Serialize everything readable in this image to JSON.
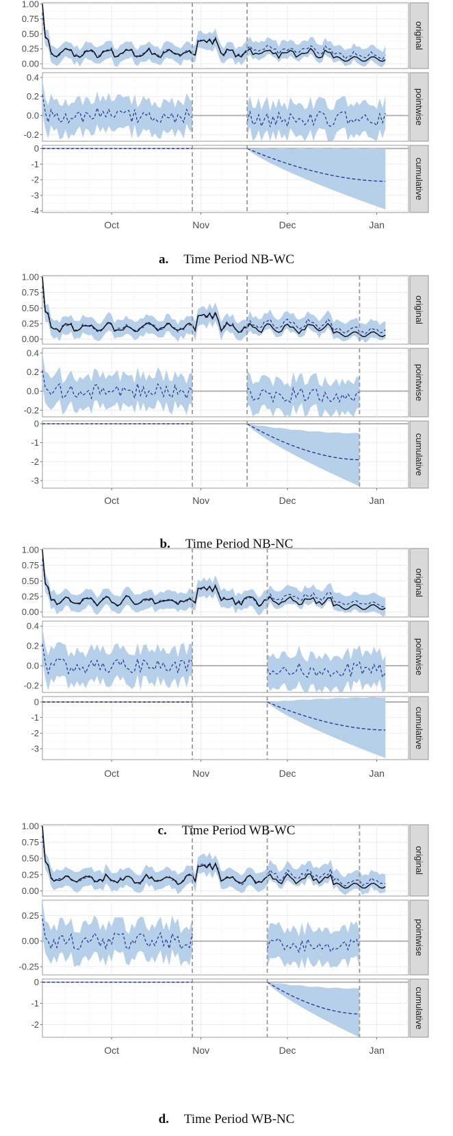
{
  "colors": {
    "band": "#b7d0ea",
    "dashed_series": "#1f2f8f",
    "actual_series": "#111111",
    "strip_bg": "#d9d9d9",
    "grid": "#ebebeb",
    "zero_line": "#aaaaaa",
    "period_marker": "#9a9a9a"
  },
  "chart_data": [
    {
      "type": "line",
      "caption_label": "a.",
      "caption_title": "Time Period NB-WC",
      "x_ticks": [
        "Oct",
        "Nov",
        "Dec",
        "Jan"
      ],
      "x_tick_days": [
        24,
        55,
        85,
        116
      ],
      "xlim_days": [
        0,
        127
      ],
      "period_markers_days": [
        52,
        71
      ],
      "panels": [
        {
          "strip": "original",
          "y_ticks": [
            "1.00",
            "0.75",
            "0.50",
            "0.25",
            "0.00"
          ],
          "y_tick_values": [
            1,
            0.75,
            0.5,
            0.25,
            0
          ],
          "ylim": [
            -0.08,
            1.02
          ]
        },
        {
          "strip": "pointwise",
          "y_ticks": [
            "0.4",
            "0.2",
            "0.0",
            "-0.2"
          ],
          "y_tick_values": [
            0.4,
            0.2,
            0,
            -0.2
          ],
          "ylim": [
            -0.27,
            0.45
          ]
        },
        {
          "strip": "cumulative",
          "y_ticks": [
            "0",
            "-1",
            "-2",
            "-3",
            "-4"
          ],
          "y_tick_values": [
            0,
            -1,
            -2,
            -3,
            -4
          ],
          "ylim": [
            -4.1,
            0.2
          ]
        }
      ],
      "cumulative_final": -2.1,
      "cumulative_band_final": [
        -3.9,
        0.0
      ]
    },
    {
      "type": "line",
      "caption_label": "b.",
      "caption_title": "Time Period NB-NC",
      "x_ticks": [
        "Oct",
        "Nov",
        "Dec",
        "Jan"
      ],
      "x_tick_days": [
        24,
        55,
        85,
        116
      ],
      "xlim_days": [
        0,
        127
      ],
      "period_markers_days": [
        52,
        71,
        110
      ],
      "panels": [
        {
          "strip": "original",
          "y_ticks": [
            "1.00",
            "0.75",
            "0.50",
            "0.25",
            "0.00"
          ],
          "y_tick_values": [
            1,
            0.75,
            0.5,
            0.25,
            0
          ],
          "ylim": [
            -0.08,
            1.02
          ]
        },
        {
          "strip": "pointwise",
          "y_ticks": [
            "0.4",
            "0.2",
            "0.0",
            "-0.2"
          ],
          "y_tick_values": [
            0.4,
            0.2,
            0,
            -0.2
          ],
          "ylim": [
            -0.27,
            0.45
          ]
        },
        {
          "strip": "cumulative",
          "y_ticks": [
            "0",
            "-1",
            "-2",
            "-3"
          ],
          "y_tick_values": [
            0,
            -1,
            -2,
            -3
          ],
          "ylim": [
            -3.4,
            0.15
          ]
        }
      ],
      "cumulative_final": -1.9,
      "cumulative_band_final": [
        -3.3,
        -0.5
      ]
    },
    {
      "type": "line",
      "caption_label": "c.",
      "caption_title": "Time Period WB-WC",
      "x_ticks": [
        "Oct",
        "Nov",
        "Dec",
        "Jan"
      ],
      "x_tick_days": [
        24,
        55,
        85,
        116
      ],
      "xlim_days": [
        0,
        127
      ],
      "period_markers_days": [
        52,
        78
      ],
      "panels": [
        {
          "strip": "original",
          "y_ticks": [
            "1.00",
            "0.75",
            "0.50",
            "0.25",
            "0.00"
          ],
          "y_tick_values": [
            1,
            0.75,
            0.5,
            0.25,
            0
          ],
          "ylim": [
            -0.08,
            1.02
          ]
        },
        {
          "strip": "pointwise",
          "y_ticks": [
            "0.4",
            "0.2",
            "0.0",
            "-0.2"
          ],
          "y_tick_values": [
            0.4,
            0.2,
            0,
            -0.2
          ],
          "ylim": [
            -0.27,
            0.45
          ]
        },
        {
          "strip": "cumulative",
          "y_ticks": [
            "0",
            "-1",
            "-2",
            "-3"
          ],
          "y_tick_values": [
            0,
            -1,
            -2,
            -3
          ],
          "ylim": [
            -3.7,
            0.35
          ]
        }
      ],
      "cumulative_final": -1.8,
      "cumulative_band_final": [
        -3.6,
        0.3
      ]
    },
    {
      "type": "line",
      "caption_label": "d.",
      "caption_title": "Time Period WB-NC",
      "x_ticks": [
        "Oct",
        "Nov",
        "Dec",
        "Jan"
      ],
      "x_tick_days": [
        24,
        55,
        85,
        116
      ],
      "xlim_days": [
        0,
        127
      ],
      "period_markers_days": [
        52,
        78,
        110
      ],
      "panels": [
        {
          "strip": "original",
          "y_ticks": [
            "1.00",
            "0.75",
            "0.50",
            "0.25",
            "0.00"
          ],
          "y_tick_values": [
            1,
            0.75,
            0.5,
            0.25,
            0
          ],
          "ylim": [
            -0.08,
            1.02
          ]
        },
        {
          "strip": "pointwise",
          "y_ticks": [
            "0.25",
            "0.00",
            "-0.25"
          ],
          "y_tick_values": [
            0.25,
            0,
            -0.25
          ],
          "ylim": [
            -0.33,
            0.4
          ]
        },
        {
          "strip": "cumulative",
          "y_ticks": [
            "0",
            "-1",
            "-2"
          ],
          "y_tick_values": [
            0,
            -1,
            -2
          ],
          "ylim": [
            -2.6,
            0.15
          ]
        }
      ],
      "cumulative_final": -1.5,
      "cumulative_band_final": [
        -2.6,
        -0.3
      ]
    }
  ]
}
